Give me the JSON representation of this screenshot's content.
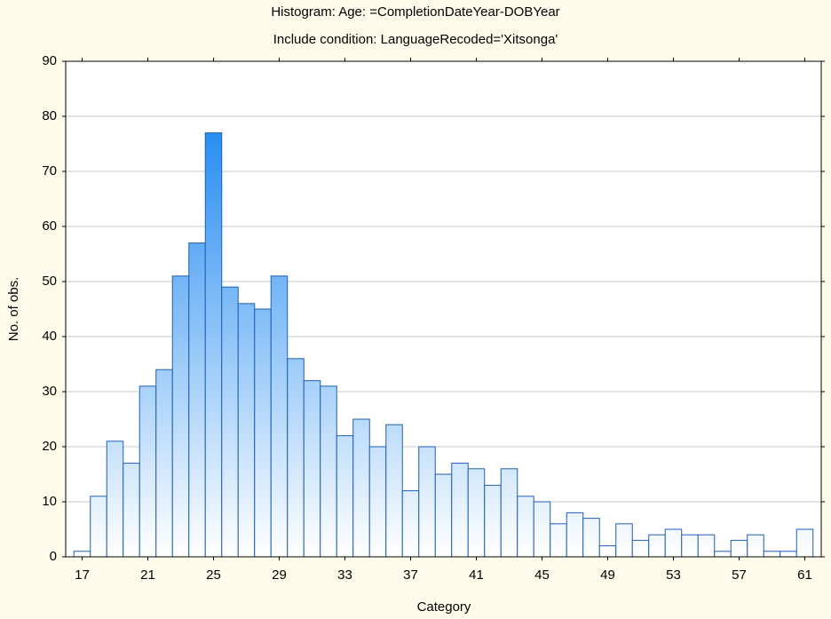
{
  "chart_data": {
    "type": "histogram",
    "title": "Histogram: Age: =CompletionDateYear-DOBYear",
    "subtitle": "Include condition: LanguageRecoded='Xitsonga'",
    "x_label": "Category",
    "y_label": "No. of obs.",
    "bins": [
      16.5,
      17.5,
      18.5,
      19.5,
      20.5,
      21.5,
      22.5,
      23.5,
      24.5,
      25.5,
      26.5,
      27.5,
      28.5,
      29.5,
      30.5,
      31.5,
      32.5,
      33.5,
      34.5,
      35.5,
      36.5,
      37.5,
      38.5,
      39.5,
      40.5,
      41.5,
      42.5,
      43.5,
      44.5,
      45.5,
      46.5,
      47.5,
      48.5,
      49.5,
      50.5,
      51.5,
      52.5,
      53.5,
      54.5,
      55.5,
      56.5,
      57.5,
      58.5,
      59.5,
      60.5,
      61.5
    ],
    "values": [
      1,
      11,
      21,
      17,
      31,
      34,
      51,
      57,
      77,
      49,
      46,
      45,
      51,
      36,
      32,
      31,
      22,
      25,
      20,
      24,
      12,
      20,
      15,
      17,
      16,
      13,
      16,
      11,
      10,
      6,
      8,
      7,
      2,
      6,
      3,
      4,
      5,
      4,
      4,
      1,
      3,
      4,
      1,
      1,
      5
    ],
    "color": "#1e88f0",
    "edge_color": "#1f5fb5",
    "xlim": [
      16,
      62
    ],
    "xticks": [
      17,
      21,
      25,
      29,
      33,
      37,
      41,
      45,
      49,
      53,
      57,
      61
    ],
    "ylim": [
      0,
      90
    ],
    "yticks": [
      0,
      10,
      20,
      30,
      40,
      50,
      60,
      70,
      80,
      90
    ],
    "grid": true
  }
}
